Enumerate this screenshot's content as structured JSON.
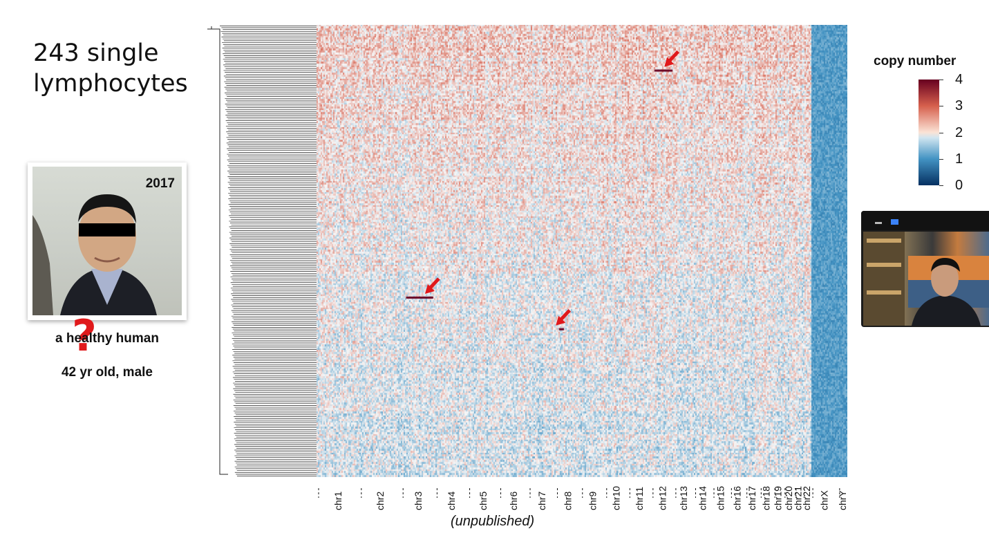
{
  "slide": {
    "title_line1": "243 single",
    "title_line2": "lymphocytes",
    "photo_year": "2017",
    "caption_line1": "a healthy human",
    "caption_line2": "42 yr old, male",
    "question_mark": "?",
    "note": "(unpublished)"
  },
  "video": {
    "icons": [
      "minimize-icon",
      "maximize-icon"
    ]
  },
  "chart_data": {
    "type": "heatmap",
    "rows": 243,
    "colorbar": {
      "title": "copy number",
      "ticks": [
        0,
        1,
        2,
        3,
        4
      ],
      "range": [
        0,
        4
      ],
      "colors": {
        "low": "#053061",
        "mid": "#f7f7f7",
        "high": "#67001f"
      }
    },
    "x_tick_labels": [
      "chr1",
      "chr2",
      "chr3",
      "chr4",
      "chr5",
      "chr6",
      "chr7",
      "chr8",
      "chr9",
      "chr10",
      "chr11",
      "chr12",
      "chr13",
      "chr14",
      "chr15",
      "chr16",
      "chr17",
      "chr18",
      "chr19",
      "chr20",
      "chr21",
      "chr22",
      "chrX",
      "chrY"
    ],
    "chromosome_widths": [
      249,
      243,
      198,
      190,
      181,
      171,
      159,
      146,
      141,
      135,
      135,
      133,
      115,
      107,
      102,
      90,
      83,
      80,
      59,
      64,
      47,
      51,
      156,
      57
    ],
    "baseline_copy_number": 2,
    "sex_chromosome_copy_number": 1,
    "highlighted_events": [
      {
        "chromosome": "chr3",
        "copy_number": 4,
        "label": "red-arrow"
      },
      {
        "chromosome": "chr8",
        "copy_number": 4,
        "label": "red-arrow"
      },
      {
        "chromosome": "chr12",
        "copy_number": 4,
        "label": "red-arrow"
      }
    ]
  }
}
